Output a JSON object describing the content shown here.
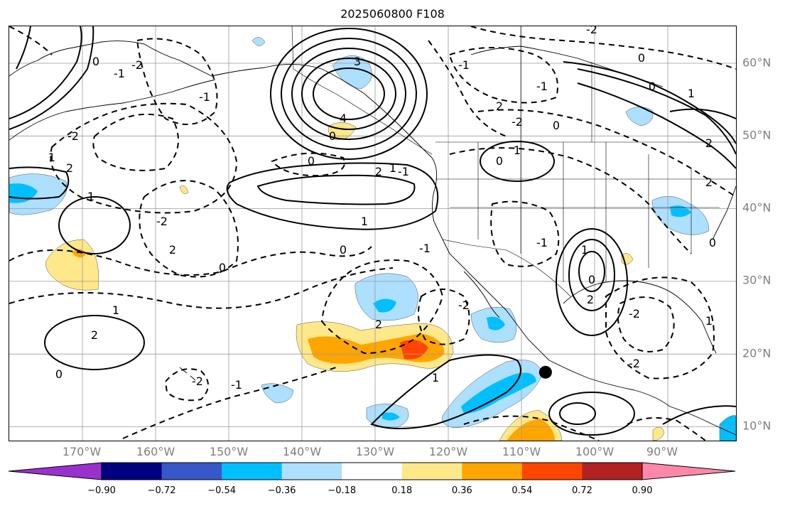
{
  "title": "2025060800 F108",
  "lon_labels": [
    "170°W",
    "160°W",
    "150°W",
    "140°W",
    "130°W",
    "120°W",
    "110°W",
    "100°W",
    "90°W"
  ],
  "lat_labels": [
    "60°N",
    "50°N",
    "40°N",
    "30°N",
    "20°N",
    "10°N"
  ],
  "colorbar": {
    "tick_labels": [
      "−0.90",
      "−0.72",
      "−0.54",
      "−0.36",
      "−0.18",
      "0.18",
      "0.36",
      "0.54",
      "0.72",
      "0.90"
    ],
    "colors": [
      "#9932CC",
      "#000080",
      "#3658C8",
      "#00BFFF",
      "#ADDFFF",
      "#FFFFFF",
      "#FFE88A",
      "#FFA500",
      "#FF4500",
      "#B22222",
      "#FF88AA"
    ]
  },
  "contour_labels": [
    "0",
    "-1",
    "-2",
    "1",
    "2",
    "3",
    "4",
    "-2",
    "0",
    "-1",
    "1",
    "2",
    "0",
    "1",
    "-1",
    "2",
    "-2",
    "0",
    "1",
    "-1",
    "0",
    "-2",
    "1",
    "2",
    "-2",
    "0",
    "1",
    "2",
    "-1",
    "0",
    "1",
    "-2",
    "2",
    "0",
    "-1",
    "0",
    "1",
    "2",
    "-2",
    "-1",
    "0",
    "2",
    "-1",
    "1",
    "0",
    "2",
    "-2",
    "1",
    "0",
    "-2"
  ],
  "marker": {
    "lon": -107,
    "lat": 17.5,
    "color": "#000000"
  }
}
